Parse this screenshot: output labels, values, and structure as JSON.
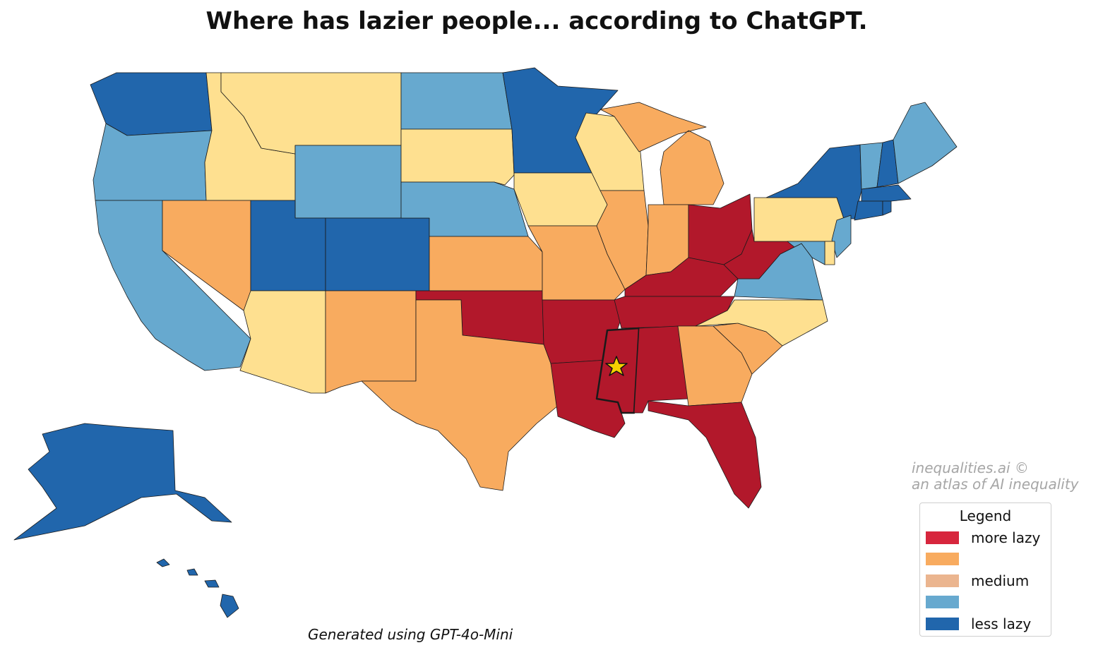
{
  "title": "Where has lazier people... according to ChatGPT.",
  "footer": "Generated using GPT-4o-Mini",
  "watermark": {
    "line1": "inequalities.ai ©",
    "line2": "an atlas of AI inequality"
  },
  "legend": {
    "title": "Legend",
    "items": [
      {
        "label": "more lazy",
        "color": "#d7263d"
      },
      {
        "label": "",
        "color": "#f8ab5f"
      },
      {
        "label": "medium",
        "color": "#ebb58f"
      },
      {
        "label": "",
        "color": "#67a9cf"
      },
      {
        "label": "less lazy",
        "color": "#2166ac"
      }
    ]
  },
  "colors": {
    "more_lazy": "#b2182b",
    "lazy": "#f8ab5f",
    "medium": "#fee090",
    "less_lazy": "#67a9cf",
    "least_lazy": "#2166ac"
  },
  "highlight": {
    "state": "Mississippi",
    "marker": "star-icon",
    "color": "#f5d000"
  },
  "states": {
    "Washington": "least_lazy",
    "Oregon": "less_lazy",
    "California": "less_lazy",
    "Idaho": "medium",
    "Montana": "medium",
    "Wyoming": "less_lazy",
    "Nevada": "lazy",
    "Utah": "least_lazy",
    "Colorado": "least_lazy",
    "Arizona": "medium",
    "New Mexico": "lazy",
    "North Dakota": "less_lazy",
    "South Dakota": "medium",
    "Nebraska": "less_lazy",
    "Kansas": "lazy",
    "Oklahoma": "more_lazy",
    "Texas": "lazy",
    "Minnesota": "least_lazy",
    "Iowa": "medium",
    "Missouri": "lazy",
    "Arkansas": "more_lazy",
    "Louisiana": "more_lazy",
    "Wisconsin": "medium",
    "Illinois": "lazy",
    "Michigan": "lazy",
    "Indiana": "lazy",
    "Ohio": "more_lazy",
    "Kentucky": "more_lazy",
    "Tennessee": "more_lazy",
    "Mississippi": "more_lazy",
    "Alabama": "more_lazy",
    "Georgia": "lazy",
    "Florida": "more_lazy",
    "South Carolina": "lazy",
    "North Carolina": "medium",
    "Virginia": "less_lazy",
    "West Virginia": "more_lazy",
    "Pennsylvania": "medium",
    "New York": "least_lazy",
    "Vermont": "less_lazy",
    "New Hampshire": "least_lazy",
    "Maine": "less_lazy",
    "Massachusetts": "least_lazy",
    "Connecticut": "least_lazy",
    "Rhode Island": "least_lazy",
    "New Jersey": "less_lazy",
    "Delaware": "medium",
    "Maryland": "less_lazy",
    "Alaska": "least_lazy",
    "Hawaii": "least_lazy"
  }
}
